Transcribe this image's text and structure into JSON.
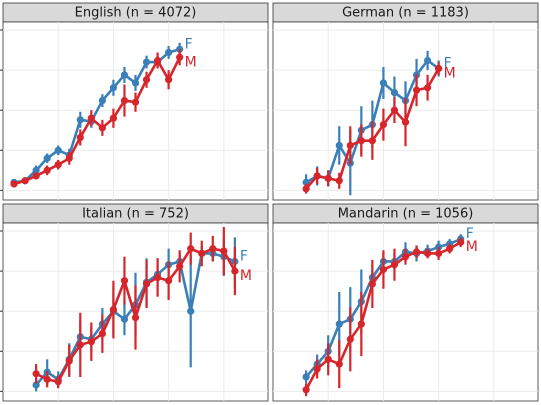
{
  "chart_data": [
    {
      "type": "line",
      "title": "English (n = 4072)",
      "x": [
        1,
        2,
        3,
        4,
        5,
        6,
        7,
        8,
        9,
        10,
        11,
        12,
        13,
        14,
        15,
        16
      ],
      "series": [
        {
          "name": "F",
          "color": "#3a7fb8",
          "values": [
            0.05,
            0.06,
            0.125,
            0.2,
            0.25,
            0.22,
            0.44,
            0.43,
            0.56,
            0.64,
            0.72,
            0.67,
            0.8,
            0.8,
            0.86,
            0.88
          ],
          "errors": [
            0.02,
            0.02,
            0.03,
            0.03,
            0.03,
            0.04,
            0.05,
            0.04,
            0.04,
            0.05,
            0.05,
            0.05,
            0.04,
            0.04,
            0.04,
            0.04
          ]
        },
        {
          "name": "M",
          "color": "#d7262b",
          "values": [
            0.04,
            0.06,
            0.09,
            0.125,
            0.16,
            0.2,
            0.33,
            0.45,
            0.39,
            0.45,
            0.56,
            0.55,
            0.69,
            0.81,
            0.69,
            0.83
          ],
          "errors": [
            0.02,
            0.02,
            0.02,
            0.03,
            0.03,
            0.04,
            0.05,
            0.05,
            0.05,
            0.06,
            0.1,
            0.06,
            0.05,
            0.05,
            0.06,
            0.05
          ]
        }
      ],
      "xlim": [
        0,
        24
      ],
      "xticks": [
        5,
        10,
        15,
        20
      ],
      "ylim": [
        -0.06,
        1.05
      ],
      "yticks": [
        0,
        0.25,
        0.5,
        0.75,
        1
      ],
      "grid": true
    },
    {
      "type": "line",
      "title": "German (n = 1183)",
      "x": [
        3,
        4,
        5,
        6,
        7,
        8,
        9,
        10,
        11,
        12,
        13,
        14,
        15
      ],
      "series": [
        {
          "name": "F",
          "color": "#3a7fb8",
          "values": [
            0.05,
            0.09,
            0.075,
            0.28,
            0.17,
            0.375,
            0.41,
            0.67,
            0.61,
            0.56,
            0.72,
            0.81,
            0.76
          ],
          "errors": [
            0.05,
            0.06,
            0.05,
            0.12,
            0.2,
            0.15,
            0.15,
            0.1,
            0.1,
            0.12,
            0.1,
            0.06,
            0.05
          ]
        },
        {
          "name": "M",
          "color": "#d7262b",
          "values": [
            0.01,
            0.09,
            0.075,
            0.06,
            0.28,
            0.31,
            0.31,
            0.41,
            0.5,
            0.425,
            0.625,
            0.64,
            0.76
          ],
          "errors": [
            0.03,
            0.05,
            0.05,
            0.05,
            0.12,
            0.1,
            0.12,
            0.1,
            0.08,
            0.15,
            0.1,
            0.08,
            0.04
          ]
        }
      ],
      "xlim": [
        0,
        24
      ],
      "xticks": [
        5,
        10,
        15,
        20
      ],
      "ylim": [
        -0.06,
        1.05
      ],
      "yticks": [
        0,
        0.25,
        0.5,
        0.75,
        1
      ],
      "grid": true
    },
    {
      "type": "line",
      "title": "Italian (n = 752)",
      "x": [
        3,
        4,
        5,
        6,
        7,
        8,
        9,
        10,
        11,
        12,
        13,
        14,
        15,
        16,
        17,
        18,
        19,
        20,
        21
      ],
      "series": [
        {
          "name": "F",
          "color": "#3a7fb8",
          "values": [
            0.04,
            0.12,
            0.075,
            0.2,
            0.34,
            0.325,
            0.42,
            0.5,
            0.45,
            0.54,
            0.68,
            0.73,
            0.79,
            0.81,
            0.5,
            0.86,
            0.86,
            0.84,
            0.81
          ],
          "errors": [
            0.04,
            0.08,
            0.05,
            0.1,
            0.1,
            0.08,
            0.1,
            0.15,
            0.1,
            0.2,
            0.15,
            0.1,
            0.1,
            0.05,
            0.35,
            0.05,
            0.05,
            0.12,
            0.15
          ]
        },
        {
          "name": "M",
          "color": "#d7262b",
          "values": [
            0.11,
            0.075,
            0.06,
            0.19,
            0.29,
            0.31,
            0.36,
            0.51,
            0.69,
            0.46,
            0.67,
            0.71,
            0.69,
            0.78,
            0.89,
            0.86,
            0.89,
            0.875,
            0.75
          ],
          "errors": [
            0.06,
            0.05,
            0.04,
            0.1,
            0.2,
            0.12,
            0.12,
            0.18,
            0.15,
            0.2,
            0.15,
            0.12,
            0.12,
            0.1,
            0.1,
            0.08,
            0.08,
            0.15,
            0.15
          ]
        }
      ],
      "xlim": [
        0,
        24
      ],
      "xticks": [
        5,
        10,
        15,
        20
      ],
      "ylim": [
        -0.06,
        1.05
      ],
      "yticks": [
        0,
        0.25,
        0.5,
        0.75,
        1
      ],
      "grid": true
    },
    {
      "type": "line",
      "title": "Mandarin (n = 1056)",
      "x": [
        3,
        4,
        5,
        6,
        7,
        8,
        9,
        10,
        11,
        12,
        13,
        14,
        15,
        16,
        17
      ],
      "series": [
        {
          "name": "F",
          "color": "#3a7fb8",
          "values": [
            0.09,
            0.17,
            0.25,
            0.42,
            0.45,
            0.56,
            0.71,
            0.81,
            0.81,
            0.87,
            0.86,
            0.875,
            0.9,
            0.92,
            0.95
          ],
          "errors": [
            0.04,
            0.06,
            0.1,
            0.2,
            0.2,
            0.2,
            0.08,
            0.05,
            0.05,
            0.06,
            0.05,
            0.04,
            0.04,
            0.03,
            0.03
          ]
        },
        {
          "name": "M",
          "color": "#d7262b",
          "values": [
            0.01,
            0.14,
            0.2,
            0.17,
            0.325,
            0.42,
            0.67,
            0.76,
            0.79,
            0.84,
            0.87,
            0.86,
            0.86,
            0.89,
            0.93
          ],
          "errors": [
            0.04,
            0.06,
            0.1,
            0.15,
            0.2,
            0.2,
            0.15,
            0.12,
            0.1,
            0.05,
            0.04,
            0.03,
            0.04,
            0.03,
            0.03
          ]
        }
      ],
      "xlim": [
        0,
        24
      ],
      "xticks": [
        5,
        10,
        15,
        20
      ],
      "ylim": [
        -0.06,
        1.05
      ],
      "yticks": [
        0,
        0.25,
        0.5,
        0.75,
        1
      ],
      "grid": true
    }
  ]
}
